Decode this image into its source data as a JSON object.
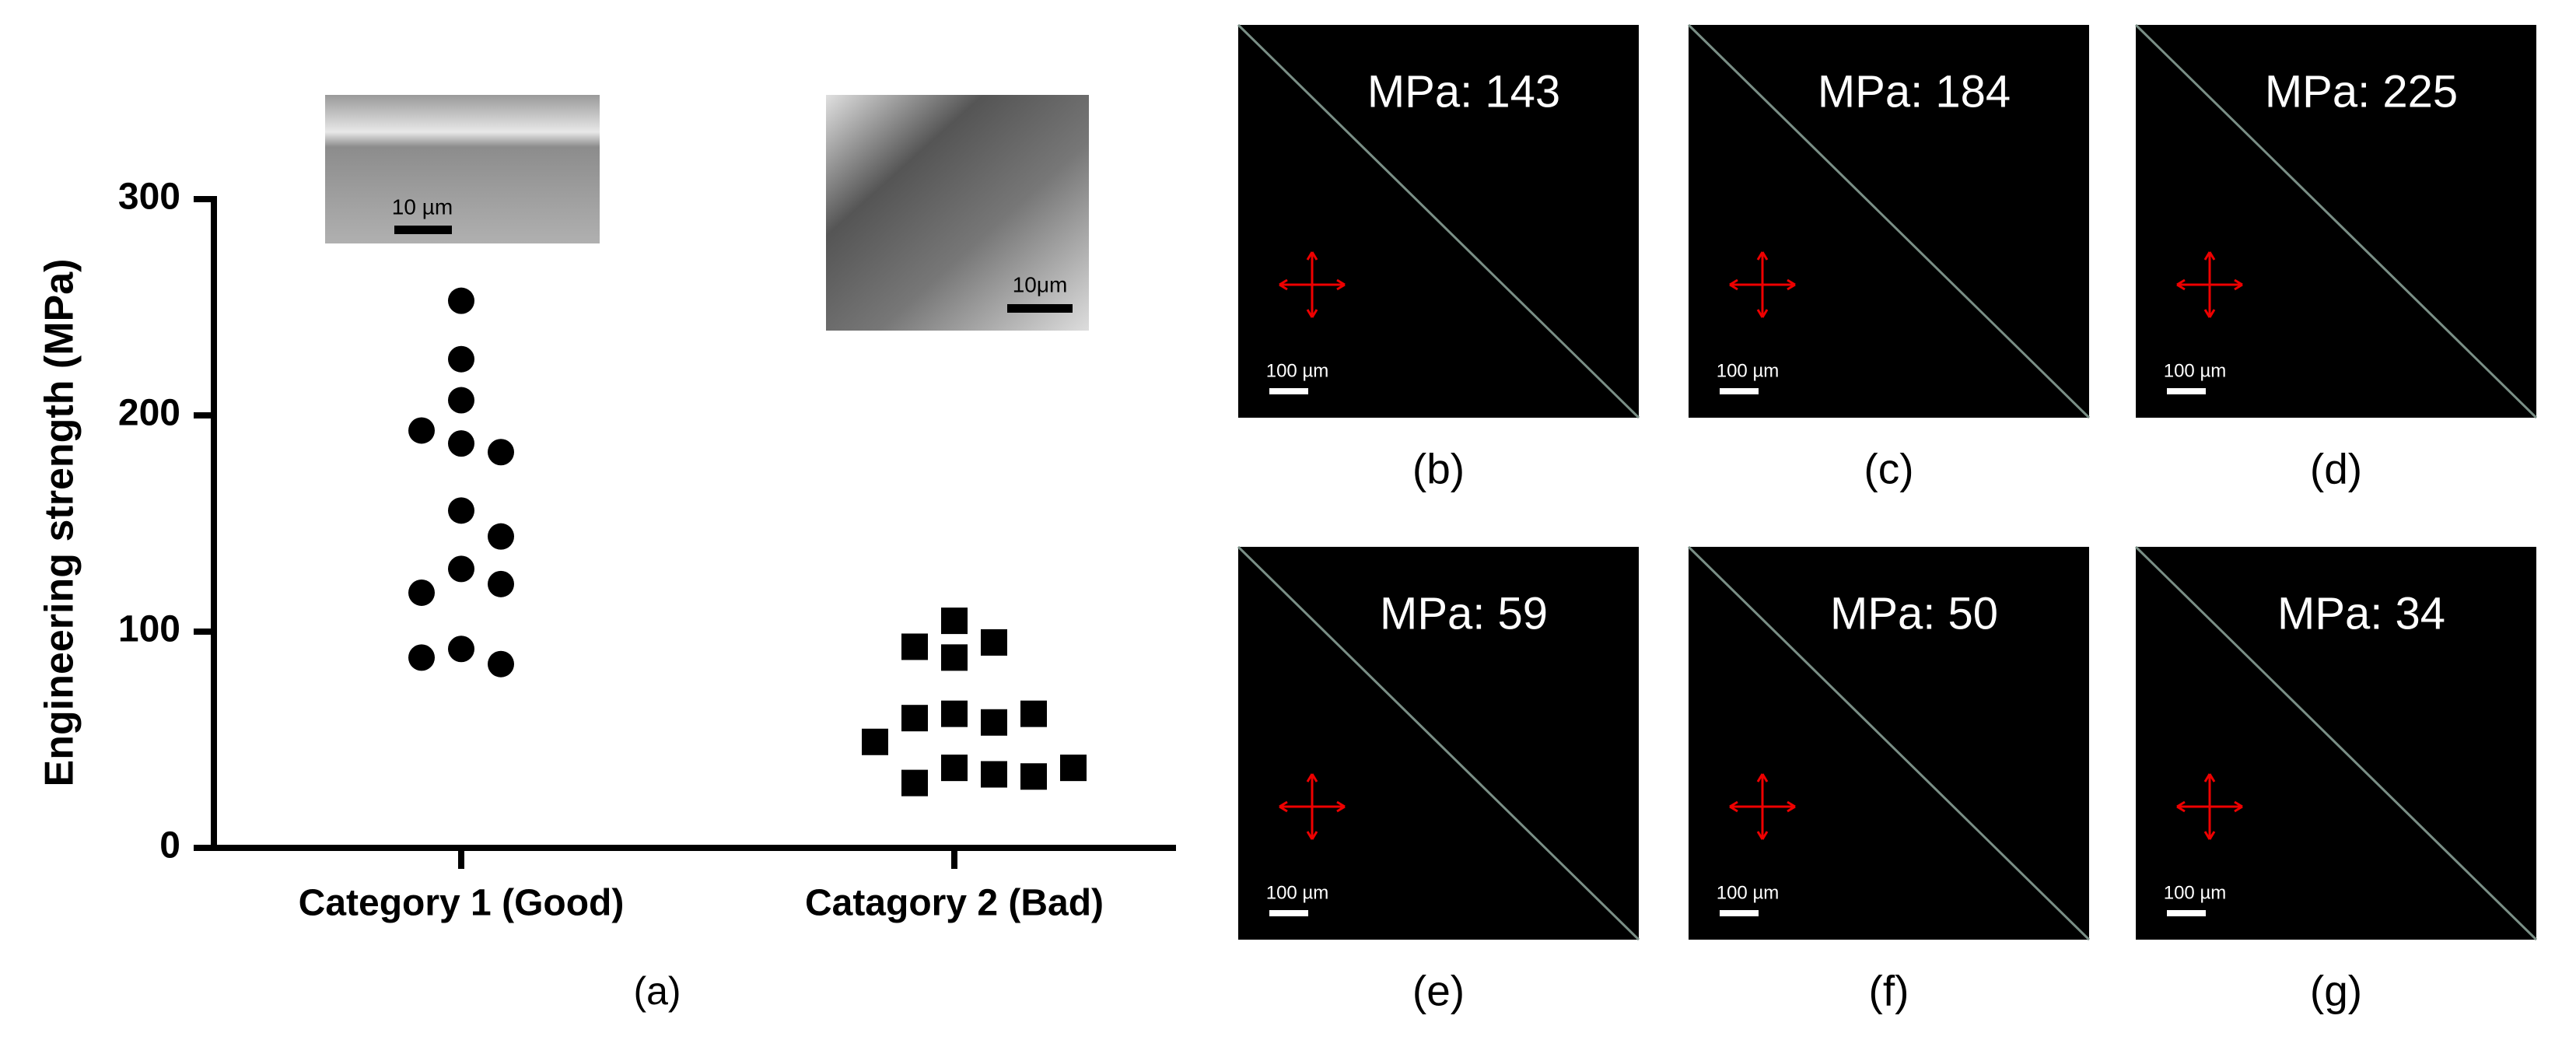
{
  "chart_data": {
    "type": "scatter",
    "y_label": "Engineering strength (MPa)",
    "panel_label": "(a)",
    "categories": [
      "Category 1 (Good)",
      "Catagory 2 (Bad)"
    ],
    "series": [
      {
        "marker": "circle",
        "color": "#000000",
        "values": [
          253,
          226,
          207,
          187,
          183,
          193,
          156,
          144,
          129,
          122,
          118,
          92,
          85,
          88
        ]
      },
      {
        "marker": "square",
        "color": "#000000",
        "values": [
          105,
          95,
          88,
          93,
          62,
          58,
          60,
          62,
          49,
          37,
          34,
          30,
          33,
          37
        ]
      }
    ],
    "ylim": [
      0,
      300
    ],
    "yticks": [
      0,
      100,
      200,
      300
    ],
    "insets": [
      {
        "scale_bar": "10 µm"
      },
      {
        "scale_bar": "10μm"
      }
    ]
  },
  "panels": [
    {
      "label": "(b)",
      "text": "MPa: 143",
      "scale_bar": "100 µm"
    },
    {
      "label": "(c)",
      "text": "MPa: 184",
      "scale_bar": "100 µm"
    },
    {
      "label": "(d)",
      "text": "MPa: 225",
      "scale_bar": "100 µm"
    },
    {
      "label": "(e)",
      "text": "MPa: 59",
      "scale_bar": "100 µm"
    },
    {
      "label": "(f)",
      "text": "MPa: 50",
      "scale_bar": "100 µm"
    },
    {
      "label": "(g)",
      "text": "MPa: 34",
      "scale_bar": "100 µm"
    }
  ]
}
